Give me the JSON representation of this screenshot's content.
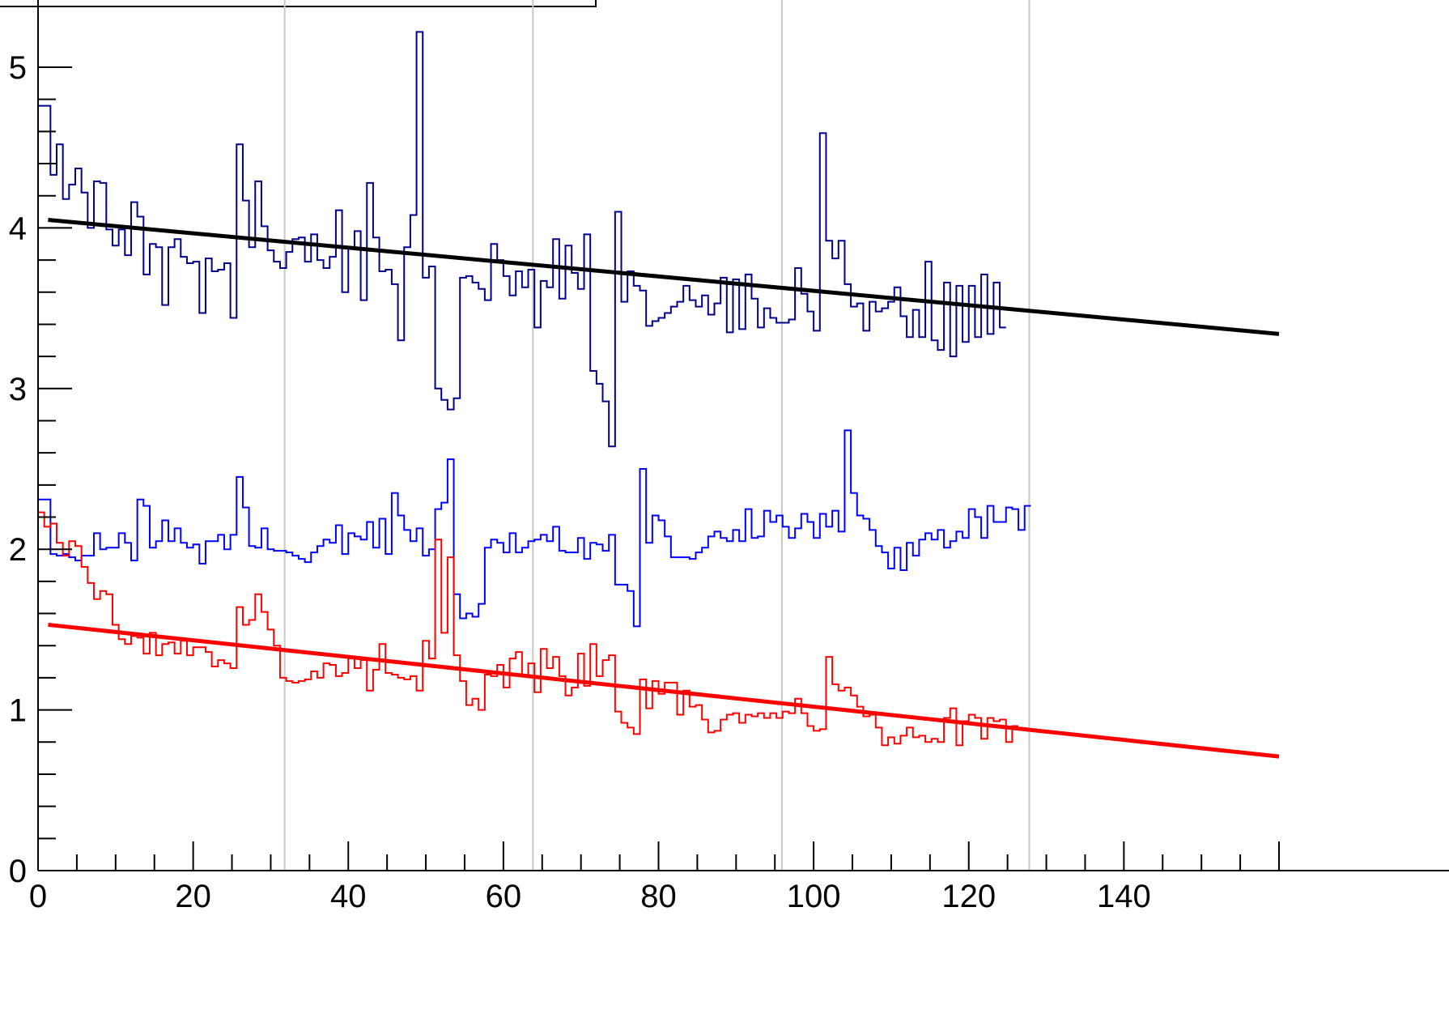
{
  "chart_data": {
    "type": "line",
    "title": "",
    "xlabel": "",
    "ylabel": "",
    "xlim": [
      0,
      160
    ],
    "ylim": [
      0,
      5.25
    ],
    "x_ticks": [
      0,
      20,
      40,
      60,
      80,
      100,
      120,
      140
    ],
    "x_tick_labels": [
      "0",
      "20",
      "40",
      "60",
      "80",
      "100",
      "120",
      "140"
    ],
    "y_ticks": [
      0,
      1,
      2,
      3,
      4,
      5
    ],
    "y_tick_labels": [
      "0",
      "1",
      "2",
      "3",
      "4",
      "5"
    ],
    "vertical_reference_lines": [
      0,
      31.8,
      63.8,
      95.9,
      127.8
    ],
    "legend_visible": false,
    "series": [
      {
        "style": "step",
        "color": "#00008b",
        "bin_width": 0.8,
        "x_start": 0,
        "values": [
          4.76,
          4.76,
          4.33,
          4.52,
          4.18,
          4.27,
          4.37,
          4.22,
          4.0,
          4.29,
          4.28,
          3.99,
          3.89,
          3.99,
          3.83,
          4.16,
          4.07,
          3.71,
          3.9,
          3.88,
          3.52,
          3.88,
          3.93,
          3.82,
          3.78,
          3.79,
          3.47,
          3.81,
          3.73,
          3.74,
          3.78,
          3.44,
          4.52,
          4.17,
          3.88,
          4.29,
          4.01,
          3.86,
          3.79,
          3.75,
          3.85,
          3.93,
          3.94,
          3.79,
          3.96,
          3.8,
          3.75,
          3.82,
          4.11,
          3.6,
          3.88,
          3.98,
          3.55,
          4.28,
          3.94,
          3.73,
          3.74,
          3.65,
          3.3,
          3.88,
          4.08,
          5.22,
          3.69,
          3.76,
          3.0,
          2.93,
          2.87,
          2.94,
          3.69,
          3.7,
          3.66,
          3.62,
          3.55,
          3.9,
          3.8,
          3.7,
          3.58,
          3.73,
          3.63,
          3.74,
          3.38,
          3.67,
          3.63,
          3.93,
          3.56,
          3.89,
          3.72,
          3.62,
          3.96,
          3.11,
          3.03,
          2.92,
          2.64,
          4.1,
          3.54,
          3.73,
          3.64,
          3.61,
          3.39,
          3.42,
          3.44,
          3.47,
          3.51,
          3.54,
          3.64,
          3.55,
          3.51,
          3.58,
          3.46,
          3.53,
          3.69,
          3.35,
          3.68,
          3.37,
          3.71,
          3.56,
          3.38,
          3.5,
          3.44,
          3.41,
          3.41,
          3.43,
          3.75,
          3.59,
          3.48,
          3.36,
          4.59,
          3.92,
          3.81,
          3.92,
          3.65,
          3.51,
          3.53,
          3.36,
          3.54,
          3.48,
          3.5,
          3.54,
          3.63,
          3.45,
          3.32,
          3.49,
          3.32,
          3.79,
          3.3,
          3.24,
          3.66,
          3.2,
          3.64,
          3.29,
          3.64,
          3.32,
          3.71,
          3.34,
          3.66,
          3.38
        ]
      },
      {
        "style": "step",
        "color": "#0000ff",
        "bin_width": 0.8,
        "x_start": 0,
        "values": [
          2.31,
          2.31,
          1.97,
          1.96,
          1.97,
          1.95,
          1.93,
          1.96,
          1.96,
          2.1,
          2.0,
          2.01,
          2.01,
          2.1,
          2.04,
          1.93,
          2.31,
          2.27,
          2.01,
          2.05,
          2.18,
          2.05,
          2.13,
          2.04,
          2.01,
          2.03,
          1.91,
          2.05,
          2.05,
          2.09,
          2.0,
          2.09,
          2.45,
          2.26,
          2.02,
          2.01,
          2.13,
          2.0,
          1.99,
          1.99,
          1.98,
          1.96,
          1.94,
          1.92,
          1.98,
          2.02,
          2.06,
          2.04,
          2.15,
          1.97,
          2.1,
          2.08,
          2.06,
          2.17,
          2.01,
          2.19,
          1.97,
          2.35,
          2.21,
          2.12,
          2.05,
          2.13,
          1.96,
          2.0,
          2.25,
          2.29,
          2.56,
          1.72,
          1.57,
          1.6,
          1.58,
          1.66,
          2.01,
          2.06,
          2.04,
          1.98,
          2.1,
          1.98,
          2.01,
          2.05,
          2.06,
          2.09,
          2.05,
          2.14,
          1.99,
          1.98,
          1.98,
          2.07,
          1.94,
          2.04,
          2.03,
          1.99,
          2.09,
          1.78,
          1.78,
          1.74,
          1.52,
          2.5,
          2.04,
          2.21,
          2.18,
          2.08,
          1.95,
          1.95,
          1.95,
          1.94,
          1.98,
          2.01,
          2.08,
          2.11,
          2.07,
          2.05,
          2.12,
          2.05,
          2.25,
          2.07,
          2.08,
          2.24,
          2.17,
          2.21,
          2.14,
          2.07,
          2.13,
          2.22,
          2.17,
          2.07,
          2.22,
          2.14,
          2.24,
          2.11,
          2.74,
          2.35,
          2.21,
          2.19,
          2.12,
          2.02,
          1.98,
          1.88,
          2.01,
          1.87,
          2.04,
          1.96,
          2.06,
          2.1,
          2.06,
          2.12,
          2.01,
          2.05,
          2.11,
          2.07,
          2.25,
          2.2,
          2.07,
          2.27,
          2.17,
          2.17,
          2.26,
          2.25,
          2.12,
          2.27
        ]
      },
      {
        "style": "step",
        "color": "#ff0000",
        "bin_width": 0.8,
        "x_start": 0,
        "values": [
          2.23,
          2.14,
          2.16,
          2.04,
          1.96,
          2.05,
          2.02,
          1.89,
          1.79,
          1.69,
          1.74,
          1.72,
          1.53,
          1.44,
          1.41,
          1.46,
          1.45,
          1.35,
          1.48,
          1.34,
          1.41,
          1.42,
          1.35,
          1.43,
          1.34,
          1.39,
          1.39,
          1.36,
          1.27,
          1.31,
          1.29,
          1.26,
          1.64,
          1.53,
          1.56,
          1.72,
          1.61,
          1.5,
          1.4,
          1.2,
          1.18,
          1.17,
          1.18,
          1.19,
          1.24,
          1.2,
          1.29,
          1.28,
          1.21,
          1.23,
          1.32,
          1.26,
          1.31,
          1.12,
          1.25,
          1.41,
          1.23,
          1.22,
          1.2,
          1.19,
          1.21,
          1.12,
          1.43,
          1.32,
          2.06,
          1.48,
          1.95,
          1.34,
          1.18,
          1.03,
          1.07,
          1.0,
          1.22,
          1.21,
          1.28,
          1.14,
          1.32,
          1.36,
          1.21,
          1.29,
          1.11,
          1.38,
          1.26,
          1.33,
          1.21,
          1.09,
          1.14,
          1.35,
          1.15,
          1.41,
          1.21,
          1.31,
          1.34,
          0.99,
          0.92,
          0.89,
          0.85,
          1.19,
          1.01,
          1.18,
          1.1,
          1.17,
          1.17,
          0.97,
          1.12,
          1.02,
          1.03,
          0.94,
          0.86,
          0.87,
          0.94,
          0.97,
          0.98,
          0.92,
          0.97,
          0.96,
          0.98,
          0.95,
          0.98,
          0.95,
          0.99,
          0.98,
          1.07,
          0.98,
          0.9,
          0.87,
          0.88,
          1.33,
          1.16,
          1.12,
          1.14,
          1.09,
          1.02,
          0.96,
          0.97,
          0.89,
          0.78,
          0.83,
          0.79,
          0.84,
          0.89,
          0.83,
          0.84,
          0.8,
          0.82,
          0.8,
          0.95,
          1.01,
          0.78,
          0.93,
          0.97,
          0.95,
          0.82,
          0.95,
          0.93,
          0.94,
          0.8,
          0.9
        ]
      },
      {
        "style": "fit-line",
        "color": "#000000",
        "x": [
          1.3,
          160
        ],
        "y": [
          4.05,
          3.34
        ]
      },
      {
        "style": "fit-line",
        "color": "#ff0000",
        "x": [
          1.3,
          160
        ],
        "y": [
          1.53,
          0.71
        ]
      }
    ]
  }
}
